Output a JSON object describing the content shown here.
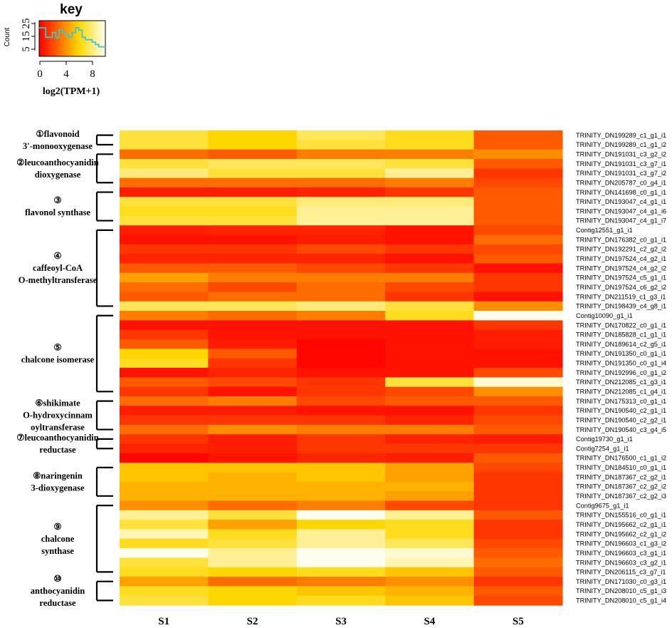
{
  "chart_data": {
    "type": "heatmap",
    "title": "",
    "columns": [
      "S1",
      "S2",
      "S3",
      "S4",
      "S5"
    ],
    "rows": [
      "TRINITY_DN199289_c1_g1_i1",
      "TRINITY_DN199289_c1_g1_i2",
      "TRINITY_DN191031_c3_g2_i2",
      "TRINITY_DN191031_c3_g7_i1",
      "TRINITY_DN191031_c3_g7_i2",
      "TRINITY_DN205787_c0_g4_i1",
      "TRINITY_DN141698_c0_g1_i1",
      "TRINITY_DN193047_c4_g1_i1",
      "TRINITY_DN193047_c4_g1_i6",
      "TRINITY_DN193047_c4_g1_i7",
      "Contig12551_g1_i1",
      "TRINITY_DN176382_c0_g1_i1",
      "TRINITY_DN192291_c2_g2_i2",
      "TRINITY_DN197524_c4_g2_i1",
      "TRINITY_DN197524_c4_g2_i2",
      "TRINITY_DN197524_c5_g1_i1",
      "TRINITY_DN197524_c6_g2_i2",
      "TRINITY_DN211519_c1_g3_i1",
      "TRINITY_DN198439_c4_g8_i1",
      "Contig10090_g1_i1",
      "TRINITY_DN170822_c0_g1_i1",
      "TRINITY_DN185828_c1_g1_i1",
      "TRINITY_DN189614_c2_g5_i1",
      "TRINITY_DN191350_c0_g1_i1",
      "TRINITY_DN191350_c0_g1_i4",
      "TRINITY_DN192996_c0_g1_i2",
      "TRINITY_DN212085_c1_g3_i1",
      "TRINITY_DN212085_c1_g4_i1",
      "TRINITY_DN175313_c0_g1_i1",
      "TRINITY_DN190540_c2_g1_i1",
      "TRINITY_DN190540_c2_g2_i1",
      "TRINITY_DN190540_c3_g4_i5",
      "Contig19730_g1_i1",
      "Contig7254_g1_i1",
      "TRINITY_DN176500_c1_g1_i2",
      "TRINITY_DN184510_c0_g1_i1",
      "TRINITY_DN187367_c2_g2_i1",
      "TRINITY_DN187367_c2_g2_i2",
      "TRINITY_DN187367_c2_g2_i3",
      "Contig9675_g1_i1",
      "TRINITY_DN155516_c0_g1_i1",
      "TRINITY_DN195662_c2_g1_i1",
      "TRINITY_DN195662_c2_g1_i2",
      "TRINITY_DN196603_c1_g3_i2",
      "TRINITY_DN196603_c3_g1_i1",
      "TRINITY_DN196603_c3_g2_i1",
      "TRINITY_DN206115_c3_g7_i1",
      "TRINITY_DN171030_c0_g3_i1",
      "TRINITY_DN208010_c5_g1_i3",
      "TRINITY_DN208010_c5_g1_i4"
    ],
    "values": [
      [
        7.0,
        6.0,
        7.5,
        6.5,
        2.5
      ],
      [
        7.0,
        6.0,
        7.0,
        6.5,
        2.5
      ],
      [
        3.0,
        2.5,
        3.5,
        3.5,
        4.0
      ],
      [
        7.0,
        7.5,
        7.5,
        7.0,
        2.5
      ],
      [
        8.0,
        7.0,
        7.0,
        8.5,
        1.5
      ],
      [
        3.0,
        3.0,
        3.0,
        3.5,
        2.0
      ],
      [
        0.8,
        0.8,
        1.0,
        1.5,
        2.5
      ],
      [
        7.0,
        7.0,
        8.0,
        8.0,
        2.5
      ],
      [
        6.5,
        6.5,
        8.5,
        8.5,
        2.5
      ],
      [
        7.0,
        7.0,
        8.5,
        8.5,
        2.5
      ],
      [
        0.8,
        1.0,
        1.0,
        0.5,
        2.0
      ],
      [
        0.5,
        0.5,
        0.8,
        0.5,
        3.0
      ],
      [
        1.5,
        1.5,
        2.0,
        1.5,
        2.0
      ],
      [
        1.0,
        1.0,
        1.0,
        0.5,
        2.5
      ],
      [
        2.5,
        2.5,
        2.0,
        1.5,
        0.5
      ],
      [
        4.5,
        3.5,
        3.5,
        3.5,
        1.5
      ],
      [
        3.0,
        2.0,
        3.0,
        2.0,
        1.5
      ],
      [
        2.5,
        3.0,
        3.0,
        1.5,
        0.5
      ],
      [
        7.5,
        7.5,
        8.0,
        7.0,
        4.0
      ],
      [
        3.5,
        3.0,
        3.5,
        6.5,
        10.0
      ],
      [
        0.5,
        0.5,
        0.5,
        0.5,
        1.5
      ],
      [
        1.5,
        0.5,
        0.5,
        0.5,
        0.8
      ],
      [
        2.5,
        0.8,
        0.2,
        0.5,
        0.8
      ],
      [
        6.0,
        2.5,
        0.2,
        0.5,
        0.5
      ],
      [
        6.5,
        1.5,
        0.2,
        0.5,
        0.5
      ],
      [
        0.5,
        1.0,
        0.5,
        0.5,
        2.0
      ],
      [
        2.5,
        2.0,
        1.5,
        7.0,
        9.5
      ],
      [
        1.5,
        0.5,
        1.5,
        2.0,
        4.0
      ],
      [
        3.0,
        3.5,
        2.0,
        2.5,
        2.5
      ],
      [
        0.8,
        0.8,
        0.5,
        0.5,
        1.5
      ],
      [
        1.5,
        1.5,
        1.5,
        1.0,
        2.0
      ],
      [
        3.0,
        4.0,
        3.5,
        3.5,
        2.5
      ],
      [
        1.5,
        0.8,
        1.5,
        1.0,
        0.8
      ],
      [
        1.0,
        0.8,
        1.5,
        1.5,
        1.5
      ],
      [
        0.2,
        0.5,
        1.0,
        0.8,
        2.5
      ],
      [
        5.5,
        5.5,
        5.5,
        4.5,
        2.0
      ],
      [
        5.5,
        5.0,
        5.5,
        4.5,
        1.5
      ],
      [
        5.0,
        5.0,
        5.0,
        5.0,
        1.5
      ],
      [
        5.0,
        5.0,
        5.0,
        4.5,
        1.5
      ],
      [
        4.0,
        3.0,
        3.5,
        2.0,
        1.5
      ],
      [
        8.5,
        7.0,
        10.0,
        8.5,
        2.5
      ],
      [
        7.0,
        4.5,
        6.0,
        6.5,
        1.5
      ],
      [
        9.0,
        6.5,
        8.5,
        6.5,
        1.5
      ],
      [
        6.5,
        7.0,
        8.5,
        7.5,
        2.0
      ],
      [
        10.0,
        8.5,
        10.0,
        9.5,
        2.5
      ],
      [
        7.0,
        8.5,
        10.0,
        9.0,
        3.0
      ],
      [
        6.5,
        6.0,
        6.5,
        5.5,
        2.5
      ],
      [
        4.5,
        3.0,
        3.5,
        4.0,
        1.5
      ],
      [
        6.5,
        6.0,
        5.5,
        5.0,
        2.5
      ],
      [
        7.0,
        6.0,
        6.5,
        5.5,
        2.0
      ]
    ],
    "groups": [
      {
        "marker": "①",
        "lines": [
          "①flavonoid",
          "3'-monooxygenase"
        ],
        "start": 0,
        "end": 1
      },
      {
        "marker": "②",
        "lines": [
          "②leucoanthocyanidin",
          "dioxygenase"
        ],
        "start": 2,
        "end": 5
      },
      {
        "marker": "③",
        "lines": [
          "③",
          "flavonol synthase"
        ],
        "start": 6,
        "end": 9
      },
      {
        "marker": "④",
        "lines": [
          "④",
          "caffeoyl-CoA",
          "O-methyltransferase"
        ],
        "start": 10,
        "end": 18
      },
      {
        "marker": "⑤",
        "lines": [
          "⑤",
          "chalcone isomerase"
        ],
        "start": 19,
        "end": 27
      },
      {
        "marker": "⑥",
        "lines": [
          "⑥shikimate",
          "O-hydroxycinnam",
          "oyltransferase"
        ],
        "start": 28,
        "end": 31
      },
      {
        "marker": "⑦",
        "lines": [
          "⑦leucoanthocyanidin",
          "reductase"
        ],
        "start": 32,
        "end": 33
      },
      {
        "marker": "⑧",
        "lines": [
          "⑧naringenin",
          "3-dioxygenase"
        ],
        "start": 35,
        "end": 38
      },
      {
        "marker": "⑨",
        "lines": [
          "⑨",
          "chalcone",
          "synthase"
        ],
        "start": 39,
        "end": 46
      },
      {
        "marker": "⑩",
        "lines": [
          "⑩",
          "anthocyanidin",
          "reductase"
        ],
        "start": 47,
        "end": 49
      }
    ],
    "color_scale": {
      "min": 0,
      "max": 10,
      "low_color": "#ff0000",
      "mid_color": "#ffd700",
      "high_color": "#fffff0"
    },
    "key": {
      "title": "key",
      "xlabel": "log2(TPM+1)",
      "ylabel": "Count",
      "x_ticks": [
        "0",
        "4",
        "8"
      ],
      "y_ticks": [
        "5",
        "15",
        "25"
      ],
      "histogram_counts": [
        24,
        24,
        16,
        16,
        20,
        16,
        22,
        20,
        18,
        16,
        20,
        24,
        22,
        16,
        14,
        14,
        12,
        10,
        8,
        8
      ],
      "histogram_color": "#3ec8c8"
    }
  }
}
